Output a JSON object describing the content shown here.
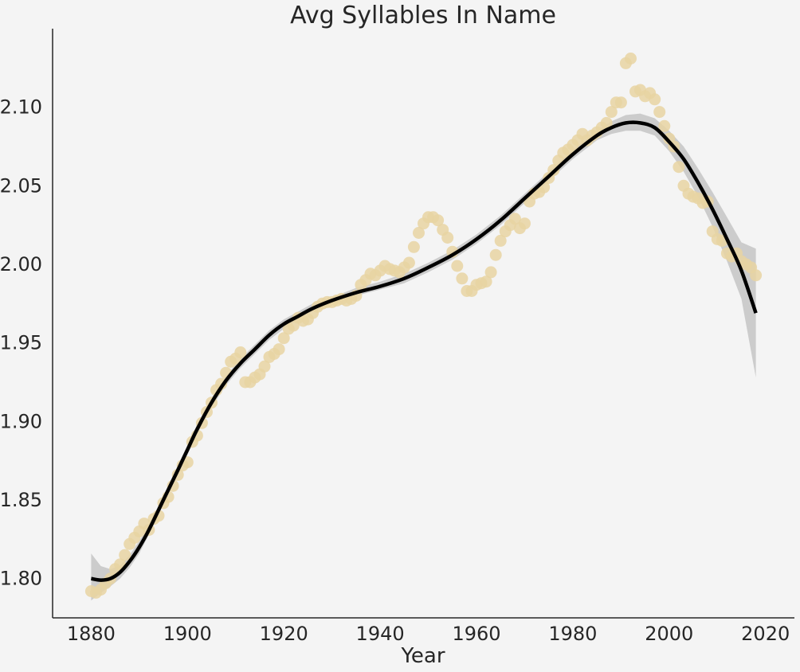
{
  "chart_data": {
    "type": "scatter",
    "title": "Avg Syllables In Name",
    "xlabel": "Year",
    "ylabel": "",
    "xlim": [
      1872,
      2026
    ],
    "ylim": [
      1.775,
      2.15
    ],
    "xticks": [
      1880,
      1900,
      1920,
      1940,
      1960,
      1980,
      2000,
      2020
    ],
    "yticks": [
      1.8,
      1.85,
      1.9,
      1.95,
      2.0,
      2.05,
      2.1
    ],
    "ytick_labels": [
      "1.80",
      "1.85",
      "1.90",
      "1.95",
      "2.00",
      "2.05",
      "2.10"
    ],
    "grid": false,
    "colors": {
      "points": "#e8d3a2",
      "fit_line": "#000000",
      "confidence_band": "#c8c8c8",
      "background": "#f4f4f4"
    },
    "series": [
      {
        "kind": "scatter",
        "x": [
          1880,
          1881,
          1882,
          1883,
          1884,
          1885,
          1886,
          1887,
          1888,
          1889,
          1890,
          1891,
          1892,
          1893,
          1894,
          1895,
          1896,
          1897,
          1898,
          1899,
          1900,
          1901,
          1902,
          1903,
          1904,
          1905,
          1906,
          1907,
          1908,
          1909,
          1910,
          1911,
          1912,
          1913,
          1914,
          1915,
          1916,
          1917,
          1918,
          1919,
          1920,
          1921,
          1922,
          1923,
          1924,
          1925,
          1926,
          1927,
          1928,
          1929,
          1930,
          1931,
          1932,
          1933,
          1934,
          1935,
          1936,
          1937,
          1938,
          1939,
          1940,
          1941,
          1942,
          1943,
          1944,
          1945,
          1946,
          1947,
          1948,
          1949,
          1950,
          1951,
          1952,
          1953,
          1954,
          1955,
          1956,
          1957,
          1958,
          1959,
          1960,
          1961,
          1962,
          1963,
          1964,
          1965,
          1966,
          1967,
          1968,
          1969,
          1970,
          1971,
          1972,
          1973,
          1974,
          1975,
          1976,
          1977,
          1978,
          1979,
          1980,
          1981,
          1982,
          1983,
          1984,
          1985,
          1986,
          1987,
          1988,
          1989,
          1990,
          1991,
          1992,
          1993,
          1994,
          1995,
          1996,
          1997,
          1998,
          1999,
          2000,
          2001,
          2002,
          2003,
          2004,
          2005,
          2006,
          2007,
          2008,
          2009,
          2010,
          2011,
          2012,
          2013,
          2014,
          2015,
          2016,
          2017,
          2018
        ],
        "y": [
          1.792,
          1.791,
          1.793,
          1.797,
          1.8,
          1.806,
          1.809,
          1.815,
          1.822,
          1.826,
          1.83,
          1.835,
          1.831,
          1.838,
          1.84,
          1.848,
          1.852,
          1.859,
          1.866,
          1.872,
          1.874,
          1.887,
          1.891,
          1.899,
          1.906,
          1.912,
          1.92,
          1.924,
          1.931,
          1.938,
          1.94,
          1.944,
          1.925,
          1.925,
          1.928,
          1.93,
          1.935,
          1.941,
          1.943,
          1.946,
          1.953,
          1.959,
          1.961,
          1.966,
          1.964,
          1.965,
          1.969,
          1.973,
          1.975,
          1.976,
          1.976,
          1.977,
          1.978,
          1.977,
          1.978,
          1.98,
          1.987,
          1.99,
          1.994,
          1.993,
          1.996,
          1.999,
          1.997,
          1.996,
          1.995,
          1.998,
          2.001,
          2.011,
          2.02,
          2.026,
          2.03,
          2.03,
          2.028,
          2.022,
          2.017,
          2.008,
          1.999,
          1.991,
          1.983,
          1.983,
          1.987,
          1.988,
          1.989,
          1.995,
          2.006,
          2.015,
          2.021,
          2.025,
          2.029,
          2.023,
          2.026,
          2.04,
          2.045,
          2.046,
          2.049,
          2.055,
          2.06,
          2.066,
          2.071,
          2.073,
          2.076,
          2.079,
          2.083,
          2.079,
          2.082,
          2.084,
          2.087,
          2.09,
          2.097,
          2.103,
          2.103,
          2.128,
          2.131,
          2.11,
          2.111,
          2.107,
          2.109,
          2.105,
          2.097,
          2.088,
          2.08,
          2.075,
          2.062,
          2.05,
          2.045,
          2.043,
          2.042,
          2.039,
          2.04,
          2.021,
          2.016,
          2.015,
          2.007,
          2.005,
          2.007,
          2.002,
          2.0,
          1.998,
          1.993
        ]
      },
      {
        "kind": "line",
        "x": [
          1880,
          1882,
          1884,
          1886,
          1888,
          1890,
          1892,
          1895,
          1898,
          1900,
          1902,
          1905,
          1908,
          1911,
          1914,
          1917,
          1920,
          1923,
          1926,
          1930,
          1935,
          1940,
          1945,
          1950,
          1955,
          1960,
          1965,
          1970,
          1975,
          1980,
          1985,
          1988,
          1991,
          1994,
          1997,
          2000,
          2003,
          2006,
          2009,
          2012,
          2015,
          2018
        ],
        "y": [
          1.8,
          1.799,
          1.8,
          1.804,
          1.811,
          1.82,
          1.831,
          1.85,
          1.869,
          1.882,
          1.895,
          1.912,
          1.926,
          1.937,
          1.946,
          1.955,
          1.962,
          1.967,
          1.972,
          1.977,
          1.982,
          1.986,
          1.991,
          1.998,
          2.006,
          2.016,
          2.028,
          2.042,
          2.056,
          2.07,
          2.082,
          2.087,
          2.09,
          2.09,
          2.087,
          2.078,
          2.067,
          2.052,
          2.035,
          2.016,
          1.996,
          1.969
        ]
      },
      {
        "kind": "band",
        "x": [
          1880,
          1882,
          1884,
          1886,
          1888,
          1890,
          1892,
          1895,
          1898,
          1900,
          1902,
          1905,
          1908,
          1911,
          1914,
          1917,
          1920,
          1923,
          1926,
          1930,
          1935,
          1940,
          1945,
          1950,
          1955,
          1960,
          1965,
          1970,
          1975,
          1980,
          1985,
          1988,
          1991,
          1994,
          1997,
          2000,
          2003,
          2006,
          2009,
          2012,
          2015,
          2018
        ],
        "lower": [
          1.786,
          1.791,
          1.795,
          1.8,
          1.807,
          1.816,
          1.828,
          1.847,
          1.866,
          1.879,
          1.892,
          1.909,
          1.923,
          1.934,
          1.943,
          1.952,
          1.959,
          1.965,
          1.97,
          1.975,
          1.98,
          1.984,
          1.988,
          1.995,
          2.003,
          2.013,
          2.025,
          2.039,
          2.053,
          2.067,
          2.079,
          2.083,
          2.085,
          2.085,
          2.082,
          2.072,
          2.059,
          2.043,
          2.024,
          2.002,
          1.978,
          1.928
        ],
        "upper": [
          1.816,
          1.808,
          1.806,
          1.808,
          1.815,
          1.824,
          1.834,
          1.853,
          1.872,
          1.885,
          1.898,
          1.915,
          1.929,
          1.94,
          1.949,
          1.958,
          1.965,
          1.97,
          1.975,
          1.979,
          1.985,
          1.989,
          1.994,
          2.001,
          2.009,
          2.019,
          2.031,
          2.045,
          2.059,
          2.073,
          2.085,
          2.091,
          2.095,
          2.096,
          2.093,
          2.085,
          2.075,
          2.061,
          2.046,
          2.03,
          2.014,
          2.01
        ]
      }
    ]
  }
}
